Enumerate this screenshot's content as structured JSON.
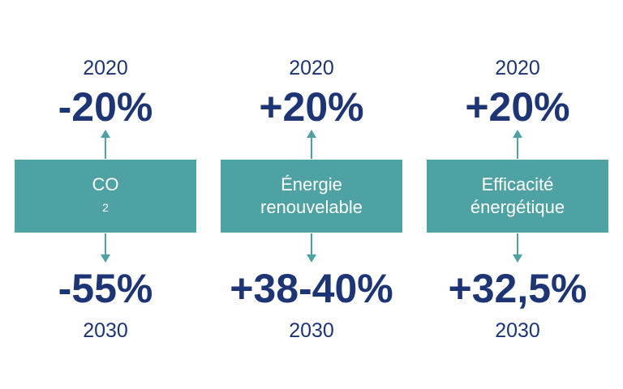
{
  "columns": [
    {
      "top_year": "2020",
      "top_value": "-20%",
      "label_main": "CO",
      "label_sub": "2",
      "bottom_value": "-55%",
      "bottom_year": "2030"
    },
    {
      "top_year": "2020",
      "top_value": "+20%",
      "label_line1": "Énergie",
      "label_line2": "renouvelable",
      "bottom_value": "+38-40%",
      "bottom_year": "2030"
    },
    {
      "top_year": "2020",
      "top_value": "+20%",
      "label_line1": "Efficacité",
      "label_line2": "énergétique",
      "bottom_value": "+32,5%",
      "bottom_year": "2030"
    }
  ],
  "colors": {
    "box": "#4fa2a4",
    "arrow": "#4fa2a4",
    "text": "#1d3475"
  }
}
